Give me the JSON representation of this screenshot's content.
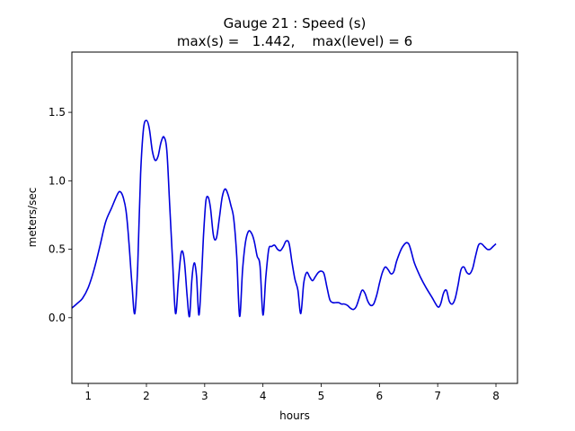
{
  "chart_data": {
    "type": "line",
    "title_line1": "Gauge 21 : Speed (s)",
    "title_line2": "max(s) =   1.442,    max(level) = 6",
    "xlabel": "hours",
    "ylabel": "meters/sec",
    "xlim": [
      0.72,
      8.37
    ],
    "ylim": [
      -0.48,
      1.94
    ],
    "xticks": [
      1,
      2,
      3,
      4,
      5,
      6,
      7,
      8
    ],
    "xtick_labels": [
      "1",
      "2",
      "3",
      "4",
      "5",
      "6",
      "7",
      "8"
    ],
    "yticks": [
      0.0,
      0.5,
      1.0,
      1.5
    ],
    "ytick_labels": [
      "0.0",
      "0.5",
      "1.0",
      "1.5"
    ],
    "grid": false,
    "line_color": "#0000dd",
    "series": [
      {
        "x": [
          0.72,
          0.8,
          0.9,
          1.0,
          1.1,
          1.2,
          1.3,
          1.4,
          1.5,
          1.55,
          1.6,
          1.65,
          1.7,
          1.75,
          1.8,
          1.85,
          1.9,
          1.95,
          2.0,
          2.05,
          2.1,
          2.15,
          2.2,
          2.25,
          2.3,
          2.35,
          2.4,
          2.45,
          2.5,
          2.55,
          2.6,
          2.65,
          2.7,
          2.74,
          2.78,
          2.82,
          2.86,
          2.9,
          2.94,
          2.98,
          3.02,
          3.06,
          3.1,
          3.15,
          3.2,
          3.25,
          3.3,
          3.35,
          3.4,
          3.45,
          3.5,
          3.55,
          3.6,
          3.65,
          3.7,
          3.75,
          3.8,
          3.85,
          3.9,
          3.95,
          4.0,
          4.05,
          4.1,
          4.15,
          4.2,
          4.25,
          4.3,
          4.35,
          4.4,
          4.45,
          4.5,
          4.55,
          4.6,
          4.65,
          4.7,
          4.75,
          4.8,
          4.85,
          4.9,
          4.95,
          5.0,
          5.05,
          5.1,
          5.15,
          5.2,
          5.25,
          5.3,
          5.35,
          5.4,
          5.45,
          5.5,
          5.55,
          5.6,
          5.65,
          5.7,
          5.75,
          5.8,
          5.85,
          5.9,
          5.95,
          6.0,
          6.05,
          6.1,
          6.15,
          6.2,
          6.25,
          6.3,
          6.4,
          6.5,
          6.6,
          6.7,
          6.8,
          6.9,
          7.0,
          7.05,
          7.1,
          7.15,
          7.2,
          7.25,
          7.3,
          7.35,
          7.4,
          7.45,
          7.5,
          7.55,
          7.6,
          7.65,
          7.7,
          7.75,
          7.8,
          7.85,
          7.9,
          7.95,
          8.0
        ],
        "y": [
          0.07,
          0.1,
          0.14,
          0.22,
          0.35,
          0.52,
          0.7,
          0.8,
          0.9,
          0.92,
          0.88,
          0.78,
          0.55,
          0.25,
          0.03,
          0.38,
          1.05,
          1.38,
          1.44,
          1.38,
          1.22,
          1.15,
          1.18,
          1.28,
          1.32,
          1.22,
          0.82,
          0.4,
          0.03,
          0.28,
          0.48,
          0.42,
          0.15,
          0.01,
          0.28,
          0.4,
          0.3,
          0.02,
          0.25,
          0.6,
          0.85,
          0.88,
          0.8,
          0.6,
          0.58,
          0.72,
          0.88,
          0.94,
          0.9,
          0.82,
          0.72,
          0.45,
          0.01,
          0.35,
          0.55,
          0.63,
          0.62,
          0.56,
          0.45,
          0.38,
          0.02,
          0.3,
          0.5,
          0.52,
          0.53,
          0.5,
          0.49,
          0.52,
          0.56,
          0.54,
          0.4,
          0.28,
          0.2,
          0.03,
          0.25,
          0.33,
          0.3,
          0.27,
          0.3,
          0.33,
          0.34,
          0.32,
          0.22,
          0.13,
          0.11,
          0.11,
          0.11,
          0.1,
          0.1,
          0.09,
          0.07,
          0.06,
          0.08,
          0.14,
          0.2,
          0.18,
          0.12,
          0.09,
          0.1,
          0.16,
          0.25,
          0.33,
          0.37,
          0.35,
          0.32,
          0.34,
          0.42,
          0.52,
          0.54,
          0.4,
          0.3,
          0.22,
          0.15,
          0.08,
          0.1,
          0.18,
          0.2,
          0.12,
          0.1,
          0.14,
          0.24,
          0.35,
          0.37,
          0.33,
          0.32,
          0.36,
          0.45,
          0.53,
          0.54,
          0.52,
          0.5,
          0.5,
          0.52,
          0.54
        ]
      }
    ]
  }
}
